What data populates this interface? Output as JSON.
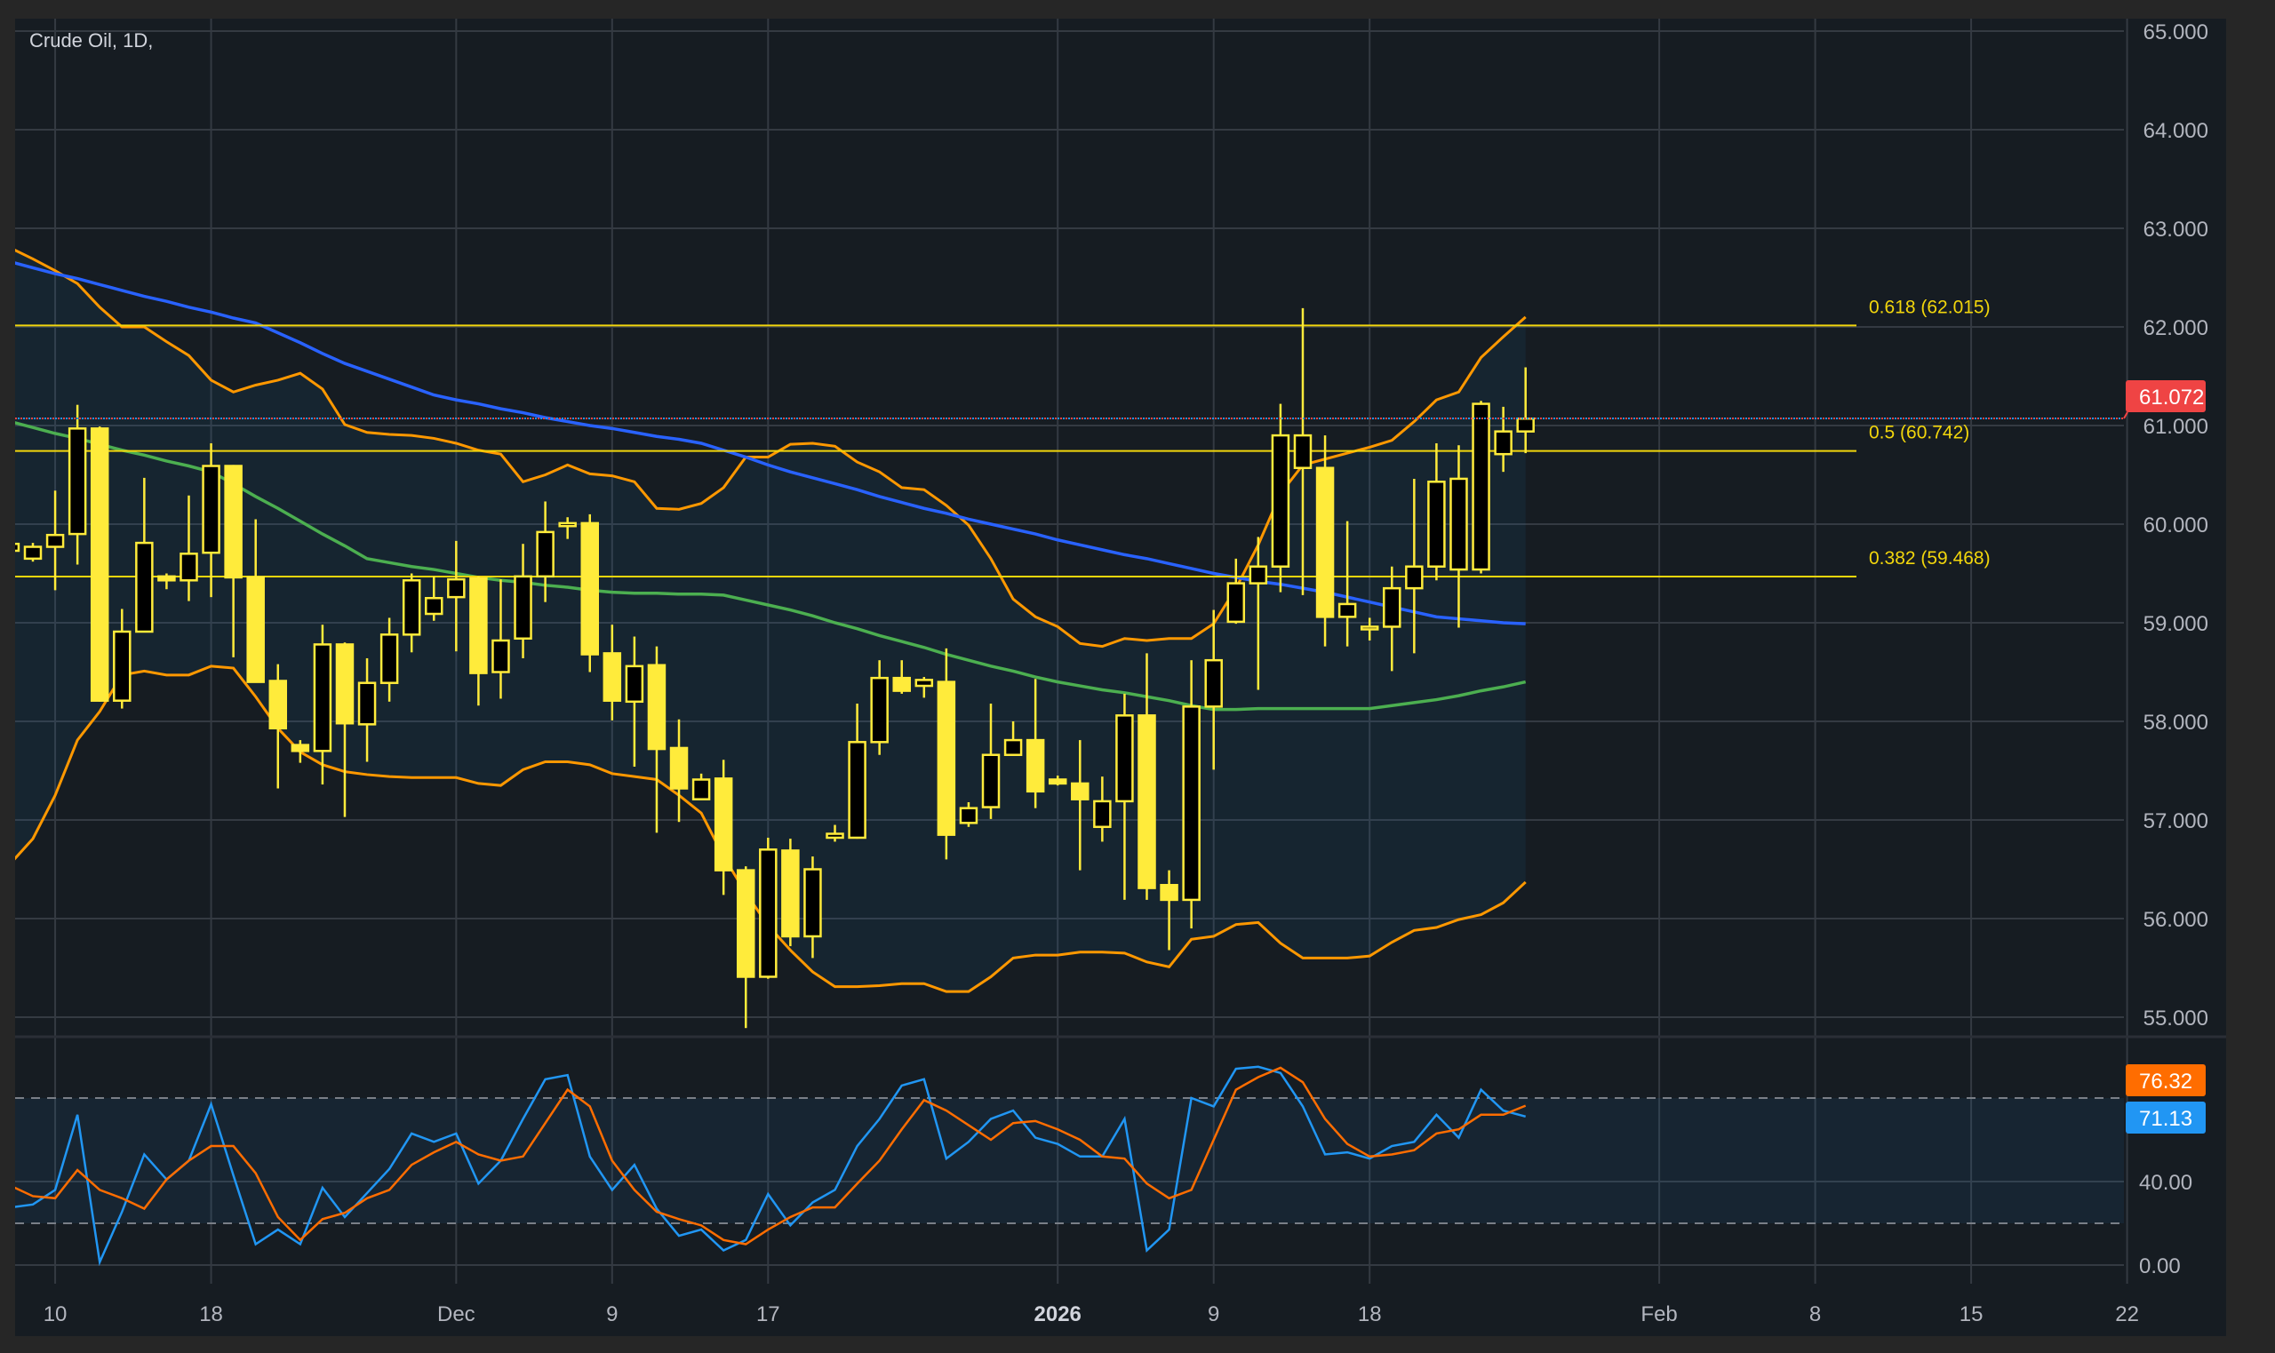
{
  "chart_data": {
    "type": "candlestick",
    "title": "Crude Oil, 1D,",
    "first_bar_index": -1,
    "candle_fields": [
      "open",
      "high",
      "low",
      "close"
    ],
    "candles": [
      [
        59.73,
        59.82,
        59.7,
        59.8
      ],
      [
        59.65,
        59.81,
        59.62,
        59.77
      ],
      [
        59.77,
        60.34,
        59.33,
        59.89
      ],
      [
        59.9,
        61.21,
        59.59,
        60.97
      ],
      [
        60.97,
        60.99,
        58.2,
        58.21
      ],
      [
        58.21,
        59.14,
        58.13,
        58.91
      ],
      [
        58.91,
        60.47,
        58.91,
        59.81
      ],
      [
        59.47,
        59.5,
        59.34,
        59.43
      ],
      [
        59.43,
        60.29,
        59.22,
        59.7
      ],
      [
        59.71,
        60.82,
        59.26,
        60.59
      ],
      [
        60.59,
        60.6,
        58.65,
        59.46
      ],
      [
        59.46,
        60.05,
        58.4,
        58.4
      ],
      [
        58.41,
        58.58,
        57.32,
        57.93
      ],
      [
        57.76,
        57.81,
        57.58,
        57.7
      ],
      [
        57.7,
        58.98,
        57.36,
        58.78
      ],
      [
        58.78,
        58.8,
        57.03,
        57.98
      ],
      [
        57.97,
        58.64,
        57.59,
        58.39
      ],
      [
        58.39,
        59.05,
        58.2,
        58.88
      ],
      [
        58.88,
        59.5,
        58.7,
        59.43
      ],
      [
        59.09,
        59.47,
        59.02,
        59.25
      ],
      [
        59.26,
        59.83,
        58.71,
        59.44
      ],
      [
        59.45,
        59.47,
        58.16,
        58.49
      ],
      [
        58.5,
        59.44,
        58.23,
        58.82
      ],
      [
        58.84,
        59.8,
        58.64,
        59.47
      ],
      [
        59.47,
        60.23,
        59.21,
        59.92
      ],
      [
        59.98,
        60.07,
        59.85,
        60.01
      ],
      [
        60.01,
        60.1,
        58.5,
        58.68
      ],
      [
        58.69,
        58.98,
        58.01,
        58.21
      ],
      [
        58.2,
        58.86,
        57.54,
        58.56
      ],
      [
        58.57,
        58.76,
        56.87,
        57.72
      ],
      [
        57.73,
        58.02,
        56.98,
        57.32
      ],
      [
        57.21,
        57.47,
        57.21,
        57.41
      ],
      [
        57.42,
        57.61,
        56.24,
        56.49
      ],
      [
        56.49,
        56.53,
        54.89,
        55.41
      ],
      [
        55.41,
        56.82,
        55.39,
        56.7
      ],
      [
        56.69,
        56.81,
        55.72,
        55.82
      ],
      [
        55.82,
        56.63,
        55.6,
        56.5
      ],
      [
        56.82,
        56.95,
        56.78,
        56.86
      ],
      [
        56.82,
        58.18,
        56.81,
        57.79
      ],
      [
        57.79,
        58.62,
        57.66,
        58.44
      ],
      [
        58.44,
        58.62,
        58.28,
        58.31
      ],
      [
        58.36,
        58.45,
        58.24,
        58.42
      ],
      [
        58.4,
        58.74,
        56.6,
        56.85
      ],
      [
        56.97,
        57.18,
        56.93,
        57.12
      ],
      [
        57.13,
        58.18,
        57.01,
        57.66
      ],
      [
        57.66,
        58.0,
        57.66,
        57.81
      ],
      [
        57.81,
        58.43,
        57.12,
        57.29
      ],
      [
        57.41,
        57.45,
        57.35,
        57.37
      ],
      [
        57.37,
        57.81,
        56.49,
        57.21
      ],
      [
        56.93,
        57.44,
        56.78,
        57.19
      ],
      [
        57.19,
        58.28,
        56.19,
        58.06
      ],
      [
        58.06,
        58.69,
        56.19,
        56.31
      ],
      [
        56.34,
        56.49,
        55.68,
        56.19
      ],
      [
        56.19,
        58.62,
        55.9,
        58.15
      ],
      [
        58.15,
        59.13,
        57.51,
        58.62
      ],
      [
        59.01,
        59.65,
        58.99,
        59.4
      ],
      [
        59.4,
        59.87,
        58.32,
        59.57
      ],
      [
        59.57,
        61.22,
        59.31,
        60.9
      ],
      [
        60.57,
        62.19,
        59.28,
        60.9
      ],
      [
        60.57,
        60.9,
        58.76,
        59.06
      ],
      [
        59.06,
        60.03,
        58.76,
        59.19
      ],
      [
        58.94,
        59.05,
        58.82,
        58.96
      ],
      [
        58.96,
        59.57,
        58.51,
        59.35
      ],
      [
        59.35,
        60.46,
        58.69,
        59.57
      ],
      [
        59.57,
        60.82,
        59.43,
        60.43
      ],
      [
        59.54,
        60.8,
        58.95,
        60.46
      ],
      [
        59.54,
        61.25,
        59.5,
        61.22
      ],
      [
        60.71,
        61.19,
        60.53,
        60.94
      ],
      [
        60.94,
        61.59,
        60.72,
        61.07
      ]
    ],
    "overlays": {
      "bb_upper": [
        62.8,
        62.69,
        62.57,
        62.44,
        62.2,
        62.0,
        62.0,
        61.85,
        61.71,
        61.46,
        61.34,
        61.41,
        61.46,
        61.53,
        61.37,
        61.01,
        60.93,
        60.91,
        60.9,
        60.87,
        60.82,
        60.75,
        60.71,
        60.43,
        60.5,
        60.6,
        60.51,
        60.49,
        60.43,
        60.16,
        60.15,
        60.21,
        60.37,
        60.68,
        60.68,
        60.81,
        60.82,
        60.79,
        60.63,
        60.53,
        60.37,
        60.35,
        60.19,
        59.99,
        59.65,
        59.24,
        59.06,
        58.96,
        58.79,
        58.76,
        58.84,
        58.82,
        58.84,
        58.84,
        58.99,
        59.35,
        59.79,
        60.31,
        60.6,
        60.66,
        60.72,
        60.78,
        60.85,
        61.04,
        61.26,
        61.34,
        61.69,
        61.9,
        62.1
      ],
      "bb_lower": [
        56.56,
        56.81,
        57.25,
        57.81,
        58.1,
        58.47,
        58.51,
        58.47,
        58.47,
        58.56,
        58.54,
        58.25,
        57.93,
        57.69,
        57.56,
        57.49,
        57.46,
        57.44,
        57.43,
        57.43,
        57.43,
        57.37,
        57.35,
        57.51,
        57.59,
        57.59,
        57.56,
        57.47,
        57.44,
        57.41,
        57.25,
        57.07,
        56.63,
        56.26,
        55.93,
        55.68,
        55.46,
        55.31,
        55.31,
        55.32,
        55.34,
        55.34,
        55.26,
        55.26,
        55.41,
        55.6,
        55.63,
        55.63,
        55.66,
        55.66,
        55.65,
        55.56,
        55.51,
        55.79,
        55.82,
        55.94,
        55.96,
        55.75,
        55.6,
        55.6,
        55.6,
        55.62,
        55.76,
        55.88,
        55.91,
        55.99,
        56.04,
        56.16,
        56.37
      ],
      "ma_blue": [
        62.66,
        62.6,
        62.54,
        62.49,
        62.43,
        62.37,
        62.31,
        62.26,
        62.2,
        62.15,
        62.09,
        62.04,
        61.94,
        61.84,
        61.73,
        61.63,
        61.55,
        61.47,
        61.39,
        61.31,
        61.26,
        61.22,
        61.17,
        61.13,
        61.08,
        61.04,
        61.0,
        60.97,
        60.93,
        60.89,
        60.86,
        60.82,
        60.75,
        60.68,
        60.6,
        60.53,
        60.47,
        60.41,
        60.35,
        60.28,
        60.22,
        60.16,
        60.11,
        60.05,
        60.0,
        59.95,
        59.9,
        59.84,
        59.79,
        59.74,
        59.69,
        59.65,
        59.6,
        59.55,
        59.5,
        59.46,
        59.42,
        59.39,
        59.35,
        59.31,
        59.26,
        59.21,
        59.16,
        59.11,
        59.06,
        59.04,
        59.02,
        59.0,
        58.99
      ],
      "ma_green": [
        61.04,
        60.98,
        60.92,
        60.87,
        60.81,
        60.75,
        60.7,
        60.64,
        60.59,
        60.53,
        60.41,
        60.28,
        60.16,
        60.03,
        59.9,
        59.78,
        59.65,
        59.61,
        59.57,
        59.54,
        59.5,
        59.46,
        59.43,
        59.41,
        59.38,
        59.36,
        59.33,
        59.31,
        59.3,
        59.3,
        59.29,
        59.29,
        59.28,
        59.23,
        59.18,
        59.13,
        59.07,
        59.0,
        58.94,
        58.87,
        58.81,
        58.75,
        58.68,
        58.62,
        58.56,
        58.51,
        58.45,
        58.4,
        58.36,
        58.32,
        58.29,
        58.25,
        58.21,
        58.16,
        58.12,
        58.12,
        58.13,
        58.13,
        58.13,
        58.13,
        58.13,
        58.13,
        58.16,
        58.19,
        58.22,
        58.26,
        58.31,
        58.35,
        58.4
      ]
    },
    "fib_levels": [
      {
        "ratio": 0.618,
        "price": 62.015,
        "label": "0.618 (62.015)"
      },
      {
        "ratio": 0.5,
        "price": 60.742,
        "label": "0.5 (60.742)"
      },
      {
        "ratio": 0.382,
        "price": 59.468,
        "label": "0.382 (59.468)"
      }
    ],
    "last_price": 61.072,
    "last_price_label": "61.072",
    "ylim": [
      54.7,
      65.3
    ],
    "price_ticks": [
      {
        "value": 55,
        "label": "55.000"
      },
      {
        "value": 56,
        "label": "56.000"
      },
      {
        "value": 57,
        "label": "57.000"
      },
      {
        "value": 58,
        "label": "58.000"
      },
      {
        "value": 59,
        "label": "59.000"
      },
      {
        "value": 60,
        "label": "60.000"
      },
      {
        "value": 61,
        "label": "61.000"
      },
      {
        "value": 62,
        "label": "62.000"
      },
      {
        "value": 63,
        "label": "63.000"
      },
      {
        "value": 64,
        "label": "64.000"
      },
      {
        "value": 65,
        "label": "65.000"
      }
    ],
    "x_ticks": [
      {
        "bar": 1,
        "label": "10"
      },
      {
        "bar": 8,
        "label": "18"
      },
      {
        "bar": 19,
        "label": "Dec"
      },
      {
        "bar": 26,
        "label": "9"
      },
      {
        "bar": 33,
        "label": "17"
      },
      {
        "bar": 46,
        "label": "2026",
        "bold": true
      },
      {
        "bar": 53,
        "label": "9"
      },
      {
        "bar": 60,
        "label": "18"
      },
      {
        "bar": 73,
        "label": "Feb"
      },
      {
        "bar": 80,
        "label": "8"
      },
      {
        "bar": 87,
        "label": "15"
      },
      {
        "bar": 94,
        "label": "22"
      }
    ],
    "grid": true,
    "oscillator": {
      "ylim": [
        0,
        100
      ],
      "levels": [
        20,
        80
      ],
      "ticks": [
        {
          "value": 0,
          "label": "0.00"
        },
        {
          "value": 40,
          "label": "40.00"
        }
      ],
      "k": [
        27.6,
        29,
        36,
        72,
        1.4,
        25.5,
        53,
        41,
        50,
        77,
        43,
        10,
        17,
        10,
        37,
        23,
        34.5,
        46,
        63,
        59,
        63,
        39,
        50,
        70,
        89,
        91,
        52,
        36,
        48,
        27,
        14,
        17,
        7,
        12,
        34,
        19,
        30,
        36,
        57,
        70,
        86,
        89,
        51,
        59,
        70,
        74,
        61,
        58,
        52,
        52,
        70,
        7,
        17,
        80,
        76,
        94,
        95,
        92,
        76,
        53,
        54,
        51,
        57,
        59,
        72,
        61,
        84,
        74,
        71.13
      ],
      "d": [
        38,
        33,
        32,
        45.5,
        36,
        32,
        27,
        41,
        50,
        57,
        57,
        44,
        23,
        12,
        22,
        25,
        32,
        36,
        48,
        54,
        59,
        53,
        50,
        52,
        68,
        84,
        76,
        50,
        36,
        25.5,
        22,
        19,
        12,
        10,
        17,
        23,
        27.6,
        27.6,
        39,
        50,
        65,
        79,
        74,
        67,
        60,
        68,
        69,
        65,
        60,
        52,
        51,
        39,
        32,
        36,
        60,
        84,
        90,
        94.5,
        87.6,
        70,
        58,
        52,
        53,
        55,
        63,
        65,
        72,
        72,
        76.32
      ],
      "k_last_label": "71.13",
      "d_last_label": "76.32"
    }
  },
  "colors": {
    "background": "#161c22",
    "frame": "#262626",
    "grid": "#343a42",
    "candle": "#ffeb3b",
    "candle_up_body": "#000000",
    "bollinger": "#ff9800",
    "ma_blue": "#2962ff",
    "ma_green": "#4caf50",
    "fib": "#f2d60c",
    "last_price": "#ef4444",
    "osc_k": "#2196f3",
    "osc_d": "#ff6d00",
    "axis_text": "#b2b5be"
  }
}
